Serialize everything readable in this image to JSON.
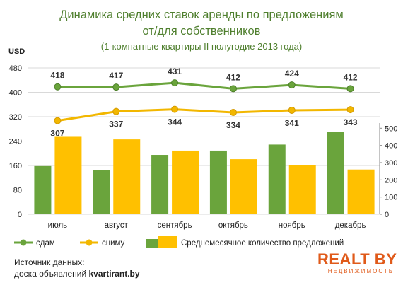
{
  "title_line1": "Динамика средних ставок аренды по предложениям",
  "title_line2": "от/для собственников",
  "subtitle": "(1-комнатные квартиры II полугодие 2013 года)",
  "source_line1": "Источник данных:",
  "source_line2_prefix": "доска объявлений",
  "source_line2_site": "kvartirant.by",
  "logo_text": "REALT BY",
  "logo_subtext": "НЕДВИЖИМОСТЬ",
  "chart_data": {
    "type": "bar",
    "categories": [
      "июль",
      "август",
      "сентябрь",
      "октябрь",
      "ноябрь",
      "декабрь"
    ],
    "left_axis": {
      "label": "USD",
      "ylim": [
        0,
        480
      ],
      "ticks": [
        0,
        80,
        160,
        240,
        320,
        400,
        480
      ]
    },
    "right_axis": {
      "label": "",
      "ylim": [
        0,
        530
      ],
      "ticks": [
        0,
        100,
        200,
        300,
        400,
        500
      ]
    },
    "grid": true,
    "legend": {
      "position": "bottom",
      "items": [
        "сдам",
        "сниму",
        "Среднемесячное  количество предложений"
      ]
    },
    "line_series": [
      {
        "name": "сдам",
        "axis": "left",
        "color": "#6aa43c",
        "values": [
          418,
          417,
          431,
          412,
          424,
          412
        ]
      },
      {
        "name": "сниму",
        "axis": "left",
        "color": "#f2b700",
        "values": [
          307,
          337,
          344,
          334,
          341,
          343
        ]
      }
    ],
    "bar_series": [
      {
        "name": "",
        "axis": "right",
        "color": "#6aa43c",
        "values": [
          280,
          255,
          345,
          370,
          405,
          480
        ]
      },
      {
        "name": "",
        "axis": "right",
        "color": "#ffc000",
        "values": [
          450,
          435,
          370,
          320,
          285,
          260
        ]
      }
    ]
  }
}
